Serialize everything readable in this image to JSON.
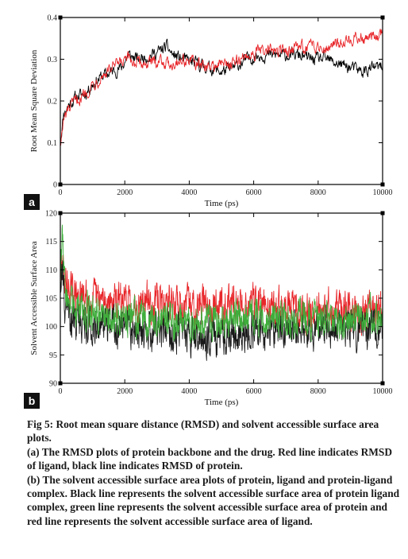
{
  "chart_data": [
    {
      "type": "line",
      "panel_label": "a",
      "xlabel": "Time (ps)",
      "ylabel": "Root Mean Square Deviation",
      "xlim": [
        0,
        10000
      ],
      "ylim": [
        0,
        0.4
      ],
      "x_ticks": [
        0,
        2000,
        4000,
        6000,
        8000,
        10000
      ],
      "y_ticks": [
        0,
        0.1,
        0.2,
        0.3,
        0.4
      ],
      "y_tick_labels": [
        "0",
        "0.1",
        "0.2",
        "0.3",
        "0.4"
      ],
      "grid": false,
      "series": [
        {
          "color": "#000000",
          "noise": 0.012,
          "x": [
            0,
            100,
            250,
            500,
            800,
            1000,
            1300,
            1600,
            1900,
            2100,
            2400,
            2800,
            3100,
            3300,
            3500,
            3800,
            4200,
            4600,
            5000,
            5400,
            5800,
            6200,
            6600,
            7000,
            7400,
            7800,
            8200,
            8600,
            9000,
            9400,
            9700,
            10000
          ],
          "y": [
            0.1,
            0.17,
            0.19,
            0.21,
            0.22,
            0.24,
            0.26,
            0.27,
            0.28,
            0.31,
            0.3,
            0.31,
            0.32,
            0.33,
            0.31,
            0.3,
            0.29,
            0.28,
            0.27,
            0.28,
            0.3,
            0.31,
            0.31,
            0.31,
            0.31,
            0.3,
            0.3,
            0.29,
            0.28,
            0.27,
            0.28,
            0.28
          ]
        },
        {
          "color": "#e8262a",
          "noise": 0.012,
          "x": [
            0,
            100,
            250,
            500,
            800,
            1000,
            1300,
            1600,
            1900,
            2100,
            2400,
            2800,
            3100,
            3300,
            3500,
            3800,
            4200,
            4600,
            5000,
            5400,
            5800,
            6200,
            6600,
            7000,
            7400,
            7800,
            8200,
            8600,
            9000,
            9400,
            9700,
            10000
          ],
          "y": [
            0.1,
            0.15,
            0.18,
            0.2,
            0.22,
            0.24,
            0.26,
            0.28,
            0.29,
            0.3,
            0.29,
            0.29,
            0.3,
            0.29,
            0.29,
            0.3,
            0.29,
            0.28,
            0.29,
            0.29,
            0.31,
            0.32,
            0.32,
            0.32,
            0.33,
            0.33,
            0.33,
            0.34,
            0.35,
            0.35,
            0.35,
            0.36
          ]
        }
      ]
    },
    {
      "type": "line",
      "panel_label": "b",
      "xlabel": "Time (ps)",
      "ylabel": "Solvent Accessible Surface Area",
      "xlim": [
        0,
        10000
      ],
      "ylim": [
        90,
        120
      ],
      "x_ticks": [
        0,
        2000,
        4000,
        6000,
        8000,
        10000
      ],
      "y_ticks": [
        90,
        95,
        100,
        105,
        110,
        115,
        120
      ],
      "grid": false,
      "series": [
        {
          "color": "#e8262a",
          "noise": 2.6,
          "x": [
            0,
            50,
            150,
            300,
            600,
            1000,
            1500,
            2000,
            2500,
            3000,
            3500,
            4000,
            4500,
            5000,
            5500,
            6000,
            6500,
            7000,
            7500,
            8000,
            8500,
            9000,
            9500,
            10000
          ],
          "y": [
            106,
            111,
            108,
            106,
            105,
            104.5,
            104.5,
            104,
            104.5,
            104,
            104,
            103.5,
            104,
            104,
            104,
            104,
            103.5,
            103.5,
            103,
            103,
            103,
            102.5,
            102.5,
            102.5
          ]
        },
        {
          "color": "#1a1a1a",
          "noise": 2.6,
          "x": [
            0,
            50,
            150,
            300,
            600,
            1000,
            1500,
            2000,
            2500,
            3000,
            3500,
            4000,
            4500,
            5000,
            5500,
            6000,
            6500,
            7000,
            7500,
            8000,
            8500,
            9000,
            9500,
            10000
          ],
          "y": [
            107,
            110,
            104,
            102,
            101,
            100.5,
            100,
            100,
            99.5,
            99.5,
            99,
            98.5,
            98,
            98.5,
            99,
            99,
            99,
            99.5,
            99.5,
            99.5,
            99.5,
            99.5,
            99.5,
            100
          ]
        },
        {
          "color": "#3fae3c",
          "noise": 2.4,
          "x": [
            0,
            50,
            150,
            300,
            600,
            1000,
            1500,
            2000,
            2500,
            3000,
            3500,
            4000,
            4500,
            5000,
            5500,
            6000,
            6500,
            7000,
            7500,
            8000,
            8500,
            9000,
            9500,
            10000
          ],
          "y": [
            108,
            116,
            106,
            104,
            103,
            102.5,
            102,
            102,
            101.5,
            101.5,
            101.5,
            101,
            101,
            101,
            101.5,
            101.5,
            101.5,
            101.5,
            101.5,
            101.5,
            101.5,
            101,
            101.5,
            102
          ]
        }
      ]
    }
  ],
  "caption": {
    "title": "Fig 5: Root mean square distance (RMSD) and solvent accessible surface area plots.",
    "part_a": "(a) The RMSD plots of protein backbone and the drug. Red line indicates RMSD of ligand, black line indicates RMSD of protein.",
    "part_b": "(b) The solvent accessible surface area plots of protein, ligand and protein-ligand complex. Black line represents the solvent accessible surface area of protein ligand complex, green line represents the solvent accessible surface area of protein and red line represents the solvent accessible surface area of ligand."
  }
}
